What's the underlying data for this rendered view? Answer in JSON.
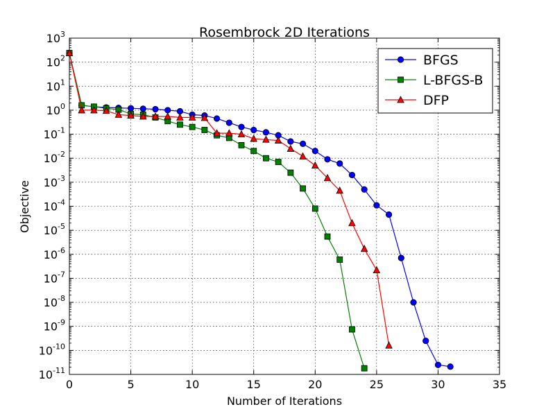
{
  "chart_data": {
    "type": "line",
    "title": "Rosembrock 2D Iterations",
    "xlabel": "Number of Iterations",
    "ylabel": "Objective",
    "xlim": [
      0,
      35
    ],
    "ylim_exp": [
      -11,
      3
    ],
    "yscale": "log",
    "grid": true,
    "legend_position": "top-right",
    "x_ticks": [
      {
        "v": 0,
        "label": "0"
      },
      {
        "v": 5,
        "label": "5"
      },
      {
        "v": 10,
        "label": "10"
      },
      {
        "v": 15,
        "label": "15"
      },
      {
        "v": 20,
        "label": "20"
      },
      {
        "v": 25,
        "label": "25"
      },
      {
        "v": 30,
        "label": "30"
      },
      {
        "v": 35,
        "label": "35"
      }
    ],
    "y_ticks": [
      {
        "e": 3,
        "base": "10",
        "exp": "3"
      },
      {
        "e": 2,
        "base": "10",
        "exp": "2"
      },
      {
        "e": 1,
        "base": "10",
        "exp": "1"
      },
      {
        "e": 0,
        "base": "10",
        "exp": "0"
      },
      {
        "e": -1,
        "base": "10",
        "exp": "-1"
      },
      {
        "e": -2,
        "base": "10",
        "exp": "-2"
      },
      {
        "e": -3,
        "base": "10",
        "exp": "-3"
      },
      {
        "e": -4,
        "base": "10",
        "exp": "-4"
      },
      {
        "e": -5,
        "base": "10",
        "exp": "-5"
      },
      {
        "e": -6,
        "base": "10",
        "exp": "-6"
      },
      {
        "e": -7,
        "base": "10",
        "exp": "-7"
      },
      {
        "e": -8,
        "base": "10",
        "exp": "-8"
      },
      {
        "e": -9,
        "base": "10",
        "exp": "-9"
      },
      {
        "e": -10,
        "base": "10",
        "exp": "-10"
      },
      {
        "e": -11,
        "base": "10",
        "exp": "-11"
      }
    ],
    "series": [
      {
        "name": "BFGS",
        "color": "#0000ff",
        "marker": "circle",
        "x": [
          0,
          1,
          2,
          3,
          4,
          5,
          6,
          7,
          8,
          9,
          10,
          11,
          12,
          13,
          14,
          15,
          16,
          17,
          18,
          19,
          20,
          21,
          22,
          23,
          24,
          25,
          26,
          27,
          28,
          29,
          30,
          31
        ],
        "y": [
          240,
          1.6,
          1.4,
          1.3,
          1.25,
          1.2,
          1.15,
          1.1,
          1.0,
          0.9,
          0.65,
          0.6,
          0.45,
          0.3,
          0.2,
          0.15,
          0.12,
          0.09,
          0.05,
          0.04,
          0.02,
          0.009,
          0.006,
          0.002,
          0.0005,
          0.00011,
          4.5e-05,
          7e-07,
          1e-08,
          2.5e-10,
          2.5e-11,
          2.1e-11
        ]
      },
      {
        "name": "L-BFGS-B",
        "color": "#008000",
        "marker": "square",
        "x": [
          0,
          1,
          2,
          3,
          4,
          5,
          6,
          7,
          8,
          9,
          10,
          11,
          12,
          13,
          14,
          15,
          16,
          17,
          18,
          19,
          20,
          21,
          22,
          23,
          24
        ],
        "y": [
          240,
          1.6,
          1.4,
          1.2,
          1.05,
          0.7,
          0.65,
          0.5,
          0.35,
          0.25,
          0.2,
          0.15,
          0.09,
          0.07,
          0.035,
          0.02,
          0.01,
          0.007,
          0.0025,
          0.00055,
          8e-05,
          5.5e-06,
          6e-07,
          7.5e-10,
          1.8e-11
        ]
      },
      {
        "name": "DFP",
        "color": "#ff0000",
        "marker": "triangle",
        "x": [
          0,
          1,
          2,
          3,
          4,
          5,
          6,
          7,
          8,
          9,
          10,
          11,
          12,
          13,
          14,
          15,
          16,
          17,
          18,
          19,
          20,
          21,
          22,
          23,
          24,
          25,
          26
        ],
        "y": [
          240,
          1.0,
          1.0,
          0.95,
          0.65,
          0.6,
          0.55,
          0.55,
          0.55,
          0.5,
          0.5,
          0.48,
          0.11,
          0.11,
          0.1,
          0.065,
          0.06,
          0.055,
          0.025,
          0.012,
          0.005,
          0.0015,
          0.00045,
          2e-05,
          1.7e-06,
          2.2e-07,
          1.6e-10
        ]
      }
    ]
  }
}
